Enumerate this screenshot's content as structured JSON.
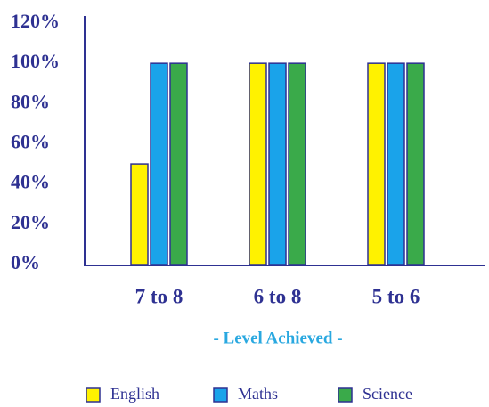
{
  "chart_data": {
    "type": "bar",
    "categories": [
      "7 to 8",
      "6 to 8",
      "5 to 6"
    ],
    "series": [
      {
        "name": "English",
        "color": "#fff200",
        "values": [
          50,
          100,
          100
        ]
      },
      {
        "name": "Maths",
        "color": "#1aa3ea",
        "values": [
          100,
          100,
          100
        ]
      },
      {
        "name": "Science",
        "color": "#3aaa4a",
        "values": [
          100,
          100,
          100
        ]
      }
    ],
    "x_label": "- Level Achieved -",
    "ylim": [
      0,
      120
    ],
    "yticks": [
      {
        "value": 0,
        "label": "0%"
      },
      {
        "value": 20,
        "label": "20%"
      },
      {
        "value": 40,
        "label": "40%"
      },
      {
        "value": 60,
        "label": "60%"
      },
      {
        "value": 80,
        "label": "80%"
      },
      {
        "value": 100,
        "label": "100%"
      },
      {
        "value": 120,
        "label": "120%"
      }
    ],
    "legend": "bottom"
  }
}
